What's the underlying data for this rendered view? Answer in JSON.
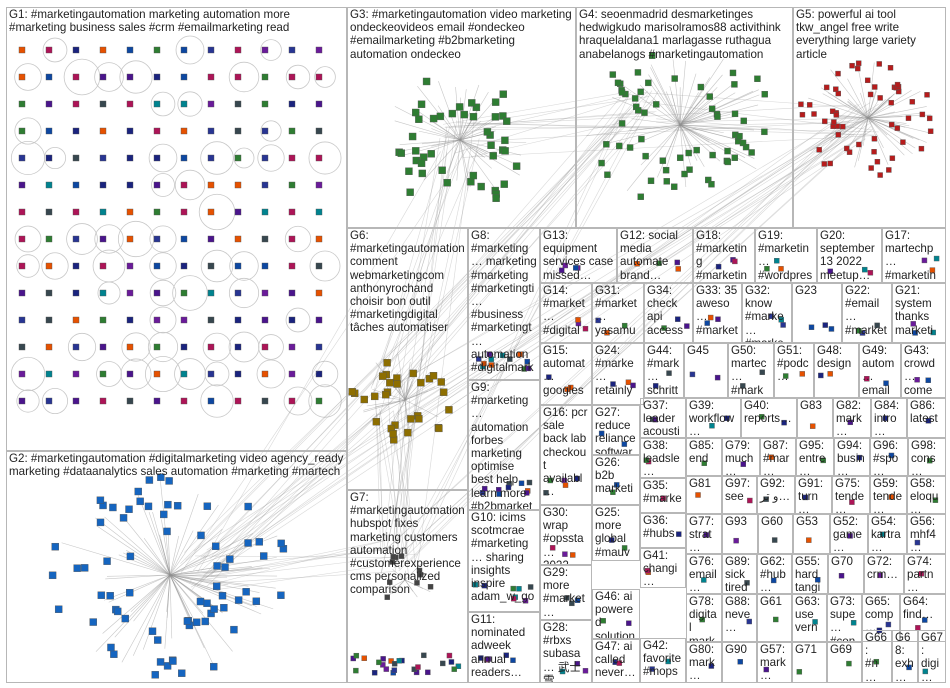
{
  "groups": [
    {
      "id": "G1",
      "label": "G1: #marketingautomation marketing automation more #marketing business sales #crm #emailmarketing read"
    },
    {
      "id": "G2",
      "label": "G2: #marketingautomation #digitalmarketing video agency_ready marketing #dataanalytics sales automation #marketing #martech"
    },
    {
      "id": "G3",
      "label": "G3: #marketingautomation video marketing ondeckeovideos email #ondeckeo #emailmarketing #b2bmarketing automation ondeckeo"
    },
    {
      "id": "G4",
      "label": "G4: seoenmadrid desmarketinges hedwigkudo marisolramos88 activithink hraquelaldana1 marlagasse ruthagua anabelanogs #marketingautomation"
    },
    {
      "id": "G5",
      "label": "G5: powerful ai tool tkw_angel free write everything large variety article"
    },
    {
      "id": "G6",
      "label": "G6: #marketingautomation comment webmarketingcom anthonyrochand choisir bon outil #marketingdigital tâches automatiser"
    },
    {
      "id": "G7",
      "label": "G7: #marketingautomation hubspot fixes marketing customers automation #customerexperience cms personalized comparison"
    },
    {
      "id": "G8",
      "label": "G8: #marketing… marketing #marketing #marketingti… #business #marketingt… automation #digitalmark… #animation #marketings…"
    },
    {
      "id": "G9",
      "label": "G9: #marketing… automation forbes marketing optimise best help learn more #b2bmarket…"
    },
    {
      "id": "G10",
      "label": "G10: icims scotmcrae #marketing… sharing insights inspire adam_w_go…"
    },
    {
      "id": "G11",
      "label": "G11: nominated adweek annual readers…"
    },
    {
      "id": "G12",
      "label": "G12: social media automate brand…"
    },
    {
      "id": "G13",
      "label": "G13: equipment services case missed…"
    },
    {
      "id": "G14",
      "label": "G14: #market… #digital… underlyi… #digital…"
    },
    {
      "id": "G15",
      "label": "G15: automat… googles… make_hq #market…"
    },
    {
      "id": "G16",
      "label": "G16: pcr sale back lab checkout availabl…"
    },
    {
      "id": "G17",
      "label": "G17: martechp… #marketin… data…"
    },
    {
      "id": "G18",
      "label": "G18: #marketing #marketin… instagram…"
    },
    {
      "id": "G19",
      "label": "G19: #marketin… #wordpress groundho…"
    },
    {
      "id": "G20",
      "label": "G20: september 13 2022 meetup…"
    },
    {
      "id": "G21",
      "label": "G21: system thanks marketi…"
    },
    {
      "id": "G22",
      "label": "G22: #email… #market… emailve…"
    },
    {
      "id": "G23",
      "label": "G23"
    },
    {
      "id": "G24",
      "label": "G24: #marke… retainly… #custo…"
    },
    {
      "id": "G25",
      "label": "G25: more global #mauv…"
    },
    {
      "id": "G26",
      "label": "G26: b2b marketi… automa…"
    },
    {
      "id": "G27",
      "label": "G27: reduce reliance softwar…"
    },
    {
      "id": "G28",
      "label": "G28: #rbxs subasa… 武士雪…"
    },
    {
      "id": "G29",
      "label": "G29: more #market… investm…"
    },
    {
      "id": "G30",
      "label": "G30: wrap #opssta… 2022…"
    },
    {
      "id": "G31",
      "label": "G31: #market… yasamu… hakan_…"
    },
    {
      "id": "G32",
      "label": "G32: know #marke… #marke…"
    },
    {
      "id": "G33",
      "label": "G33: 35 aweso… #market… statistic…"
    },
    {
      "id": "G34",
      "label": "G34: check api access…"
    },
    {
      "id": "G35",
      "label": "G35: #marke… #mark…"
    },
    {
      "id": "G36",
      "label": "G36: #hubs… #hubs…"
    },
    {
      "id": "G37",
      "label": "G37: leader acousti…"
    },
    {
      "id": "G38",
      "label": "G38: leadsle… market…"
    },
    {
      "id": "G39",
      "label": "G39: workflow…"
    },
    {
      "id": "G40",
      "label": "G40: reports…"
    },
    {
      "id": "G41",
      "label": "G41: changi… game…"
    },
    {
      "id": "G42",
      "label": "G42: favorite #mops…"
    },
    {
      "id": "G43",
      "label": "G43: crowd… come…"
    },
    {
      "id": "G44",
      "label": "G44: #mark… schritt"
    },
    {
      "id": "G45",
      "label": "G45"
    },
    {
      "id": "G46",
      "label": "G46: ai powered solution…"
    },
    {
      "id": "G47",
      "label": "G47: ai called never…"
    },
    {
      "id": "G48",
      "label": "G48: design"
    },
    {
      "id": "G49",
      "label": "G49: autom… email…"
    },
    {
      "id": "G50",
      "label": "G50: martec… #mark…"
    },
    {
      "id": "G51",
      "label": "G51: #podc…"
    },
    {
      "id": "G52",
      "label": "G52: game…"
    },
    {
      "id": "G53",
      "label": "G53"
    },
    {
      "id": "G54",
      "label": "G54: kartra…"
    },
    {
      "id": "G55",
      "label": "G55: hard tangi…"
    },
    {
      "id": "G56",
      "label": "G56: mhf4…"
    },
    {
      "id": "G57",
      "label": "G57: mark… #mar…"
    },
    {
      "id": "G58",
      "label": "G58: eloqu…"
    },
    {
      "id": "G59",
      "label": "G59: tende…"
    },
    {
      "id": "G60",
      "label": "G60"
    },
    {
      "id": "G61",
      "label": "G61"
    },
    {
      "id": "G62",
      "label": "G62: #hub… #mar…"
    },
    {
      "id": "G63",
      "label": "G63: use vern…"
    },
    {
      "id": "G64",
      "label": "G64: find…"
    },
    {
      "id": "G65",
      "label": "G65: comp…"
    },
    {
      "id": "G66",
      "label": "G66: #n… #in…"
    },
    {
      "id": "G67",
      "label": "G67: digi… #m…"
    },
    {
      "id": "G68",
      "label": "G68: exh… #m…"
    },
    {
      "id": "G69",
      "label": "G69"
    },
    {
      "id": "G70",
      "label": "G70"
    },
    {
      "id": "G71",
      "label": "G71"
    },
    {
      "id": "G72",
      "label": "G72: crm…"
    },
    {
      "id": "G73",
      "label": "G73: supe… #con…"
    },
    {
      "id": "G74",
      "label": "G74: partn…"
    },
    {
      "id": "G75",
      "label": "G75: tende…"
    },
    {
      "id": "G76",
      "label": "G76: email…"
    },
    {
      "id": "G77",
      "label": "G77: strat…"
    },
    {
      "id": "G78",
      "label": "G78: digital mark…"
    },
    {
      "id": "G79",
      "label": "G79: much…"
    },
    {
      "id": "G80",
      "label": "G80: mark…"
    },
    {
      "id": "G81",
      "label": "G81"
    },
    {
      "id": "G82",
      "label": "G82: mark…"
    },
    {
      "id": "G83",
      "label": "G83"
    },
    {
      "id": "G84",
      "label": "G84: intro…"
    },
    {
      "id": "G85",
      "label": "G85: end"
    },
    {
      "id": "G86",
      "label": "G86: latest"
    },
    {
      "id": "G87",
      "label": "G87: #mar…"
    },
    {
      "id": "G88",
      "label": "G88: neve…"
    },
    {
      "id": "G89",
      "label": "G89: sick tired…"
    },
    {
      "id": "G90",
      "label": "G90"
    },
    {
      "id": "G91",
      "label": "G91: turn…"
    },
    {
      "id": "G92",
      "label": "G92: و تر…"
    },
    {
      "id": "G93",
      "label": "G93"
    },
    {
      "id": "G94",
      "label": "G94: busin…"
    },
    {
      "id": "G95",
      "label": "G95: entre…"
    },
    {
      "id": "G96",
      "label": "G96: #spo…"
    },
    {
      "id": "G97",
      "label": "G97: see"
    },
    {
      "id": "G98",
      "label": "G98: cons…"
    }
  ],
  "colors": {
    "border": "#b7b7b7",
    "edge": "#8f8f8f",
    "g1": "#1a237e",
    "g2": "#1565c0",
    "g3": "#2e7d32",
    "g4": "#2e7d32",
    "g5": "#b71c1c",
    "g6": "#8d6e00"
  }
}
